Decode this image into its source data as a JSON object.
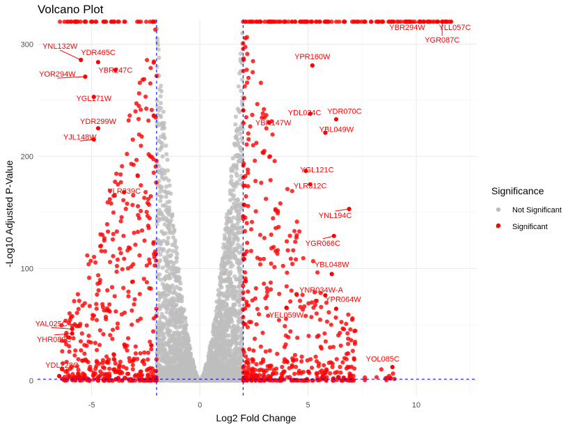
{
  "chart_data": {
    "type": "scatter",
    "title": "Volcano Plot",
    "xlabel": "Log2 Fold Change",
    "ylabel": "-Log10 Adjusted P-Value",
    "xlim": [
      -7.5,
      12.8
    ],
    "ylim": [
      -14,
      322
    ],
    "x_ticks": [
      -5,
      0,
      5,
      10
    ],
    "y_ticks": [
      0,
      100,
      200,
      300
    ],
    "grid": true,
    "thresholds": {
      "log2fc": [
        -2,
        2
      ],
      "neg_log10_p": 1.3
    },
    "legend": {
      "title": "Significance",
      "position": "right",
      "entries": [
        {
          "label": "Not Significant",
          "color": "#bebebe"
        },
        {
          "label": "Significant",
          "color": "#ff0000"
        }
      ]
    },
    "series": [
      {
        "name": "Not Significant",
        "color": "#bebebe"
      },
      {
        "name": "Significant",
        "color": "#ff0000"
      }
    ],
    "labeled_genes": [
      {
        "gene": "YNL132W",
        "x": -5.5,
        "y": 286
      },
      {
        "gene": "YDR465C",
        "x": -4.7,
        "y": 284
      },
      {
        "gene": "YOR294W",
        "x": -5.3,
        "y": 271
      },
      {
        "gene": "YBR247C",
        "x": -3.9,
        "y": 277
      },
      {
        "gene": "YGL171W",
        "x": -4.9,
        "y": 253
      },
      {
        "gene": "YDR299W",
        "x": -4.7,
        "y": 225
      },
      {
        "gene": "YJL148W",
        "x": -4.9,
        "y": 215
      },
      {
        "gene": "YLR339C",
        "x": -3.5,
        "y": 168
      },
      {
        "gene": "YAL025C",
        "x": -5.9,
        "y": 46
      },
      {
        "gene": "YHR089C",
        "x": -5.9,
        "y": 42
      },
      {
        "gene": "YDL228C",
        "x": -6.5,
        "y": 4
      },
      {
        "gene": "YPR160W",
        "x": 5.2,
        "y": 281
      },
      {
        "gene": "YDL024C",
        "x": 5.1,
        "y": 238
      },
      {
        "gene": "YDR070C",
        "x": 6.3,
        "y": 233
      },
      {
        "gene": "YBR147W",
        "x": 3.2,
        "y": 230
      },
      {
        "gene": "YBL049W",
        "x": 5.8,
        "y": 221
      },
      {
        "gene": "YGL121C",
        "x": 4.9,
        "y": 187
      },
      {
        "gene": "YLR312C",
        "x": 5.1,
        "y": 175
      },
      {
        "gene": "YNL194C",
        "x": 6.9,
        "y": 153
      },
      {
        "gene": "YGR066C",
        "x": 6.2,
        "y": 129
      },
      {
        "gene": "YBL048W",
        "x": 6.1,
        "y": 95
      },
      {
        "gene": "YNR034W-A",
        "x": 5.8,
        "y": 76
      },
      {
        "gene": "YPR064W",
        "x": 6.3,
        "y": 64
      },
      {
        "gene": "YEL059W",
        "x": 4.0,
        "y": 65
      },
      {
        "gene": "YOL085C",
        "x": 8.9,
        "y": 12
      },
      {
        "gene": "YBR294W",
        "x": 11.0,
        "y": 320
      },
      {
        "gene": "YLL057C",
        "x": 11.4,
        "y": 320
      },
      {
        "gene": "YGR087C",
        "x": 11.2,
        "y": 320
      }
    ]
  }
}
